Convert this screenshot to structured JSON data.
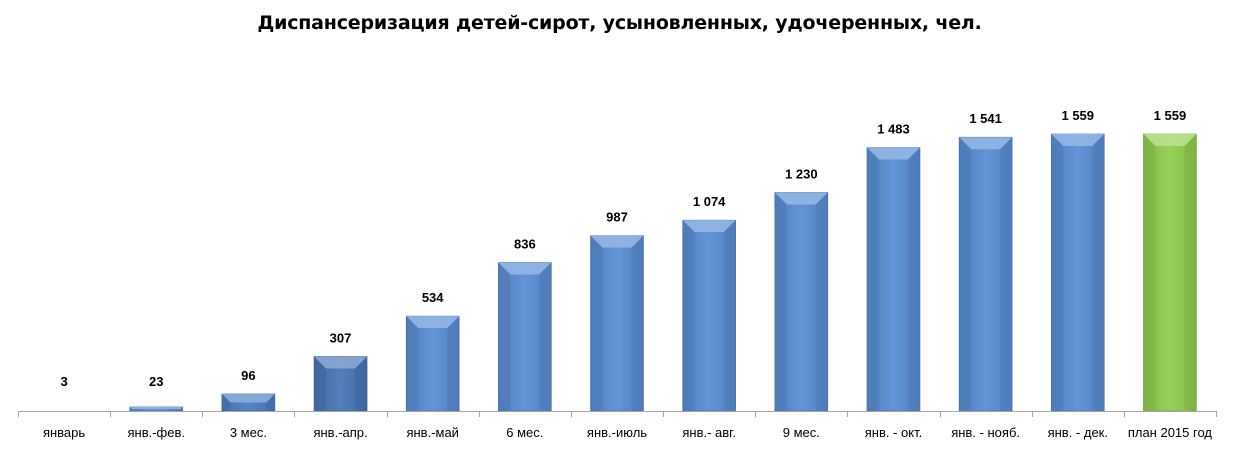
{
  "chart_data": {
    "type": "bar",
    "title": "Диспансеризация детей-сирот, усыновленных, удочеренных, чел.",
    "xlabel": "",
    "ylabel": "",
    "ylim": [
      0,
      1600
    ],
    "grid": false,
    "legend": "none",
    "categories": [
      "январь",
      "янв.-фев.",
      "3 мес.",
      "янв.-апр.",
      "янв.-май",
      "6 мес.",
      "янв.-июль",
      "янв.- авг.",
      "9 мес.",
      "янв. - окт.",
      "янв. - нояб.",
      "янв. - дек.",
      "план 2015 год"
    ],
    "values": [
      3,
      23,
      96,
      307,
      534,
      836,
      987,
      1074,
      1230,
      1483,
      1541,
      1559,
      1559
    ],
    "value_labels": [
      "3",
      "23",
      "96",
      "307",
      "534",
      "836",
      "987",
      "1 074",
      "1 230",
      "1 483",
      "1 541",
      "1 559",
      "1 559"
    ],
    "bar_colors": [
      "#5b8fd6",
      "#5b8fd6",
      "#4e7fc4",
      "#4a78b8",
      "#5b8fd6",
      "#5b8fd6",
      "#5b8fd6",
      "#5b8fd6",
      "#5b8fd6",
      "#5b8fd6",
      "#5b8fd6",
      "#5b8fd6",
      "#92d050"
    ],
    "axis_color": "#a6a6a6"
  }
}
